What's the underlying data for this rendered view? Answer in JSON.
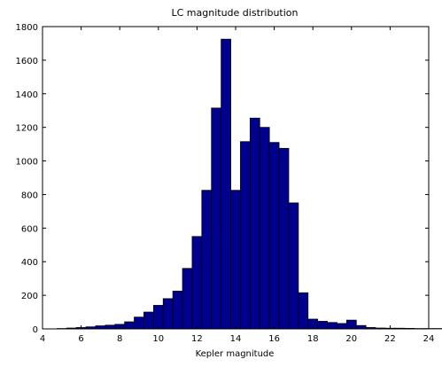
{
  "chart_data": {
    "type": "bar",
    "title": "LC magnitude distribution",
    "xlabel": "Kepler magnitude",
    "ylabel": "",
    "xlim": [
      4,
      24
    ],
    "ylim": [
      0,
      1800
    ],
    "xticks": [
      4,
      6,
      8,
      10,
      12,
      14,
      16,
      18,
      20,
      22,
      24
    ],
    "yticks": [
      0,
      200,
      400,
      600,
      800,
      1000,
      1200,
      1400,
      1600,
      1800
    ],
    "bin_width": 0.5,
    "bin_start": 4.75,
    "values": [
      2,
      5,
      8,
      12,
      18,
      22,
      27,
      42,
      70,
      100,
      140,
      180,
      225,
      360,
      550,
      825,
      1315,
      1725,
      825,
      1115,
      1255,
      1200,
      1110,
      1075,
      750,
      215,
      58,
      45,
      38,
      32,
      52,
      20,
      8,
      5,
      4,
      4,
      3,
      2,
      2,
      2,
      1
    ],
    "bar_color": "#00008f",
    "edge_color": "#000000",
    "grid": false,
    "legend": "none"
  }
}
